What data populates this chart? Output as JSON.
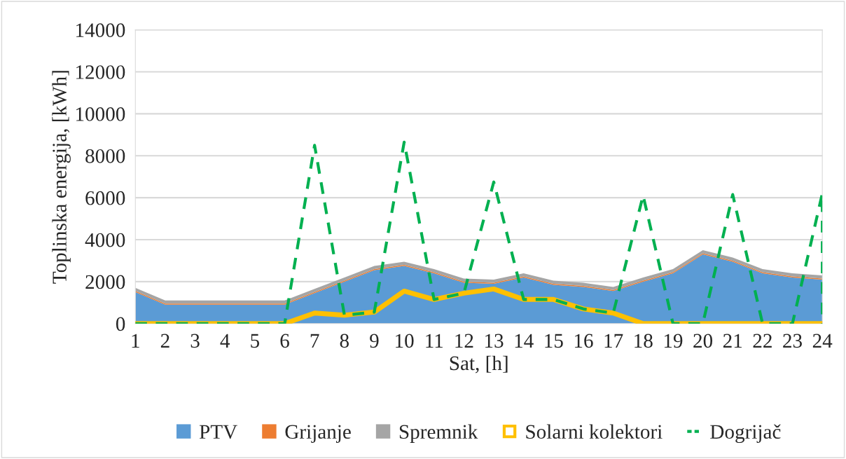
{
  "chart_data": {
    "type": "area",
    "stacked": true,
    "xlabel": "Sat, [h]",
    "ylabel": "Toplinska energija, [kWh]",
    "x": [
      1,
      2,
      3,
      4,
      5,
      6,
      7,
      8,
      9,
      10,
      11,
      12,
      13,
      14,
      15,
      16,
      17,
      18,
      19,
      20,
      21,
      22,
      23,
      24
    ],
    "xlim": [
      1,
      24
    ],
    "xticks": [
      1,
      2,
      3,
      4,
      5,
      6,
      7,
      8,
      9,
      10,
      11,
      12,
      13,
      14,
      15,
      16,
      17,
      18,
      19,
      20,
      21,
      22,
      23,
      24
    ],
    "ylim": [
      0,
      14000
    ],
    "yticks": [
      0,
      2000,
      4000,
      6000,
      8000,
      10000,
      12000,
      14000
    ],
    "grid": "y",
    "legend": "bottom",
    "series": [
      {
        "name": "PTV",
        "color": "#5b9bd5",
        "values": [
          1500,
          900,
          900,
          900,
          900,
          900,
          1450,
          2000,
          2550,
          2750,
          2400,
          1950,
          1900,
          2200,
          1850,
          1750,
          1550,
          2000,
          2400,
          3300,
          2950,
          2400,
          2200,
          2100
        ]
      },
      {
        "name": "Grijanje",
        "color": "#ed7d31",
        "values": [
          50,
          50,
          50,
          50,
          50,
          50,
          50,
          50,
          50,
          50,
          50,
          50,
          50,
          50,
          50,
          50,
          50,
          50,
          50,
          50,
          50,
          50,
          50,
          50
        ]
      },
      {
        "name": "Spremnik",
        "color": "#a5a5a5",
        "values": [
          150,
          150,
          150,
          150,
          150,
          150,
          150,
          150,
          150,
          150,
          150,
          150,
          150,
          150,
          150,
          150,
          150,
          150,
          150,
          150,
          150,
          150,
          150,
          150
        ]
      },
      {
        "name": "Solarni kolektori",
        "type": "line",
        "line_style": "solid",
        "color": "#ffc000",
        "values": [
          0,
          0,
          0,
          0,
          0,
          0,
          500,
          400,
          550,
          1550,
          1150,
          1450,
          1650,
          1150,
          1150,
          700,
          500,
          0,
          0,
          0,
          0,
          0,
          0,
          0
        ]
      },
      {
        "name": "Dogrijač",
        "type": "line",
        "line_style": "dashed",
        "color": "#00b050",
        "x": [
          1,
          2,
          3,
          4,
          5,
          6,
          7,
          8,
          9,
          10,
          11,
          12,
          13,
          14,
          15,
          16,
          17,
          18,
          19,
          20,
          21,
          22,
          23,
          24,
          24
        ],
        "values": [
          0,
          0,
          0,
          0,
          0,
          0,
          8500,
          400,
          550,
          8650,
          1150,
          1450,
          6750,
          1150,
          1150,
          700,
          500,
          6100,
          0,
          0,
          6150,
          0,
          0,
          6200,
          0
        ]
      }
    ]
  }
}
